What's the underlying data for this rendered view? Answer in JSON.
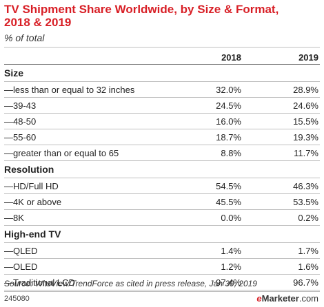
{
  "title": "TV Shipment Share Worldwide, by Size & Format, 2018 & 2019",
  "subtitle": "% of total",
  "chart_data": {
    "type": "table",
    "title": "TV Shipment Share Worldwide, by Size & Format, 2018 & 2019",
    "subtitle": "% of total",
    "columns": [
      "2018",
      "2019"
    ],
    "sections": [
      {
        "name": "Size",
        "rows": [
          {
            "label": "—less than or equal to 32 inches",
            "values": [
              "32.0%",
              "28.9%"
            ]
          },
          {
            "label": "—39-43",
            "values": [
              "24.5%",
              "24.6%"
            ]
          },
          {
            "label": "—48-50",
            "values": [
              "16.0%",
              "15.5%"
            ]
          },
          {
            "label": "—55-60",
            "values": [
              "18.7%",
              "19.3%"
            ]
          },
          {
            "label": "—greater than or equal to 65",
            "values": [
              "8.8%",
              "11.7%"
            ]
          }
        ]
      },
      {
        "name": "Resolution",
        "rows": [
          {
            "label": "—HD/Full HD",
            "values": [
              "54.5%",
              "46.3%"
            ]
          },
          {
            "label": "—4K or above",
            "values": [
              "45.5%",
              "53.5%"
            ]
          },
          {
            "label": "—8K",
            "values": [
              "0.0%",
              "0.2%"
            ]
          }
        ]
      },
      {
        "name": "High-end TV",
        "rows": [
          {
            "label": "—QLED",
            "values": [
              "1.4%",
              "1.7%"
            ]
          },
          {
            "label": "—OLED",
            "values": [
              "1.2%",
              "1.6%"
            ]
          },
          {
            "label": "—Traditional LCD",
            "values": [
              "97.4%",
              "96.7%"
            ]
          }
        ]
      }
    ]
  },
  "source": "Source: WitsView/TrendForce as cited in press release, Jan 30, 2019",
  "chart_id": "245080",
  "brand": {
    "e": "e",
    "name": "Marketer",
    "suffix": ".com"
  },
  "colors": {
    "title": "#d81f26",
    "brand_accent": "#d81f26",
    "rule": "#bfbfbf"
  }
}
